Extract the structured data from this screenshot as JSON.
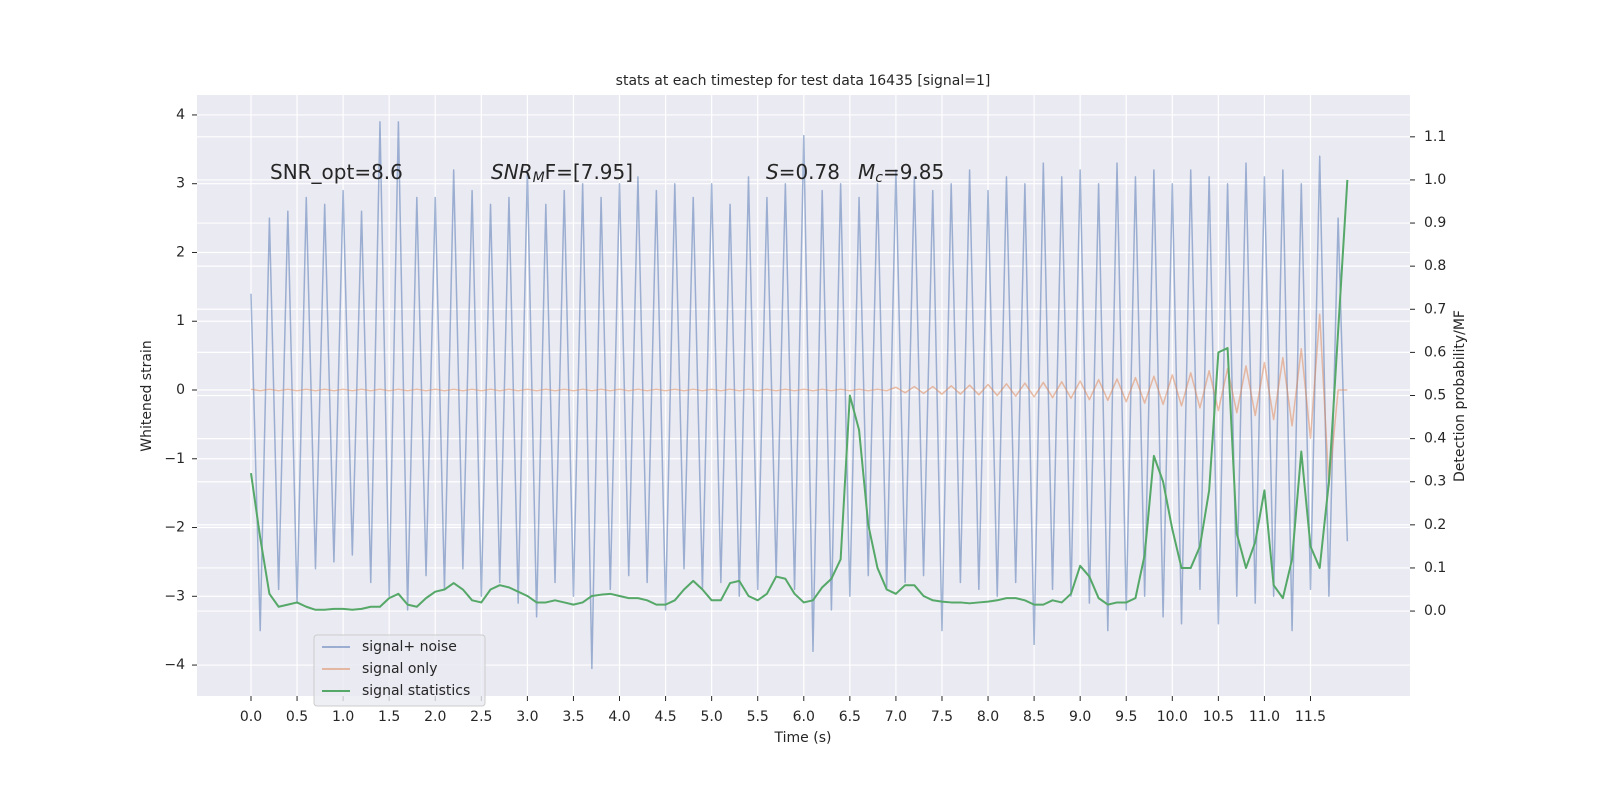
{
  "chart_data": {
    "type": "line",
    "title": "stats at each timestep for test data 16435 [signal=1]",
    "x_label": "Time (s)",
    "y_label": "Whitened strain",
    "y2_label": "Detection probability/MF",
    "annotations": [
      {
        "text": "SNR_opt=8.6"
      },
      {
        "italic": "SNR",
        "sub": "M",
        "text": "F=[7.95]"
      },
      {
        "italic": "S",
        "text": "=0.78"
      },
      {
        "italic": "M",
        "sub": "c",
        "text": "=9.85"
      }
    ],
    "grid": true,
    "legend": "lower left",
    "xlim": [
      -0.586,
      12.58
    ],
    "ylim": [
      -4.45,
      4.29
    ],
    "y2lim": [
      -0.197,
      1.197
    ],
    "xticks": [
      {
        "value": 0,
        "label": "0.0"
      },
      {
        "value": 0.5,
        "label": "0.5"
      },
      {
        "value": 1,
        "label": "1.0"
      },
      {
        "value": 1.5,
        "label": "1.5"
      },
      {
        "value": 2,
        "label": "2.0"
      },
      {
        "value": 2.5,
        "label": "2.5"
      },
      {
        "value": 3,
        "label": "3.0"
      },
      {
        "value": 3.5,
        "label": "3.5"
      },
      {
        "value": 4,
        "label": "4.0"
      },
      {
        "value": 4.5,
        "label": "4.5"
      },
      {
        "value": 5,
        "label": "5.0"
      },
      {
        "value": 5.5,
        "label": "5.5"
      },
      {
        "value": 6,
        "label": "6.0"
      },
      {
        "value": 6.5,
        "label": "6.5"
      },
      {
        "value": 7,
        "label": "7.0"
      },
      {
        "value": 7.5,
        "label": "7.5"
      },
      {
        "value": 8,
        "label": "8.0"
      },
      {
        "value": 8.5,
        "label": "8.5"
      },
      {
        "value": 9,
        "label": "9.0"
      },
      {
        "value": 9.5,
        "label": "9.5"
      },
      {
        "value": 10,
        "label": "10.0"
      },
      {
        "value": 10.5,
        "label": "10.5"
      },
      {
        "value": 11,
        "label": "11.0"
      },
      {
        "value": 11.5,
        "label": "11.5"
      }
    ],
    "yticks": [
      {
        "value": -4,
        "label": "−4"
      },
      {
        "value": -3,
        "label": "−3"
      },
      {
        "value": -2,
        "label": "−2"
      },
      {
        "value": -1,
        "label": "−1"
      },
      0,
      1,
      2,
      3,
      4
    ],
    "y2ticks": [
      {
        "value": 0,
        "label": "0.0"
      },
      {
        "value": 0.1,
        "label": "0.1"
      },
      {
        "value": 0.2,
        "label": "0.2"
      },
      {
        "value": 0.3,
        "label": "0.3"
      },
      {
        "value": 0.4,
        "label": "0.4"
      },
      {
        "value": 0.5,
        "label": "0.5"
      },
      {
        "value": 0.6,
        "label": "0.6"
      },
      {
        "value": 0.7,
        "label": "0.7"
      },
      {
        "value": 0.8,
        "label": "0.8"
      },
      {
        "value": 0.9,
        "label": "0.9"
      },
      {
        "value": 1.0,
        "label": "1.0"
      },
      {
        "value": 1.1,
        "label": "1.1"
      }
    ],
    "x": [
      0.0,
      0.1,
      0.2,
      0.3,
      0.4,
      0.5,
      0.6,
      0.7,
      0.8,
      0.9,
      1.0,
      1.1,
      1.2,
      1.3,
      1.4,
      1.5,
      1.6,
      1.7,
      1.8,
      1.9,
      2.0,
      2.1,
      2.2,
      2.3,
      2.4,
      2.5,
      2.6,
      2.7,
      2.8,
      2.9,
      3.0,
      3.1,
      3.2,
      3.3,
      3.4,
      3.5,
      3.6,
      3.7,
      3.8,
      3.9,
      4.0,
      4.1,
      4.2,
      4.3,
      4.4,
      4.5,
      4.6,
      4.7,
      4.8,
      4.9,
      5.0,
      5.1,
      5.2,
      5.3,
      5.4,
      5.5,
      5.6,
      5.7,
      5.8,
      5.9,
      6.0,
      6.1,
      6.2,
      6.3,
      6.4,
      6.5,
      6.6,
      6.7,
      6.8,
      6.9,
      7.0,
      7.1,
      7.2,
      7.3,
      7.4,
      7.5,
      7.6,
      7.7,
      7.8,
      7.9,
      8.0,
      8.1,
      8.2,
      8.3,
      8.4,
      8.5,
      8.6,
      8.7,
      8.8,
      8.9,
      9.0,
      9.1,
      9.2,
      9.3,
      9.4,
      9.5,
      9.6,
      9.7,
      9.8,
      9.9,
      10.0,
      10.1,
      10.2,
      10.3,
      10.4,
      10.5,
      10.6,
      10.7,
      10.8,
      10.9,
      11.0,
      11.1,
      11.2,
      11.3,
      11.4,
      11.5,
      11.6,
      11.7,
      11.8,
      11.9
    ],
    "series": [
      {
        "name": "signal+ noise",
        "color": "#4c72b0",
        "alpha": 0.5,
        "values": [
          1.4,
          -3.5,
          2.5,
          -2.9,
          2.6,
          -3.1,
          2.8,
          -2.6,
          2.7,
          -2.5,
          2.9,
          -2.4,
          2.6,
          -2.8,
          3.9,
          -3.0,
          3.9,
          -3.2,
          2.8,
          -2.7,
          2.8,
          -2.9,
          3.2,
          -2.6,
          2.9,
          -3.0,
          2.7,
          -2.8,
          2.8,
          -3.1,
          3.2,
          -3.3,
          2.7,
          -2.8,
          2.9,
          -3.0,
          3.0,
          -4.05,
          2.8,
          -2.9,
          3.0,
          -2.7,
          3.1,
          -2.8,
          2.9,
          -3.2,
          3.0,
          -2.6,
          2.8,
          -2.9,
          3.0,
          -2.8,
          2.7,
          -3.0,
          3.1,
          -2.9,
          2.8,
          -2.7,
          3.0,
          -2.9,
          3.7,
          -3.8,
          2.9,
          -3.2,
          3.0,
          -3.0,
          2.8,
          -2.7,
          3.0,
          -2.9,
          3.2,
          -2.8,
          3.1,
          -2.7,
          2.9,
          -3.5,
          3.0,
          -2.8,
          3.2,
          -2.9,
          2.9,
          -3.0,
          3.1,
          -2.8,
          3.0,
          -3.7,
          3.3,
          -2.9,
          3.1,
          -3.0,
          3.2,
          -3.1,
          3.0,
          -3.5,
          3.3,
          -3.2,
          3.1,
          -3.0,
          3.2,
          -3.3,
          3.0,
          -3.4,
          3.2,
          -2.9,
          3.1,
          -3.4,
          3.0,
          -3.0,
          3.3,
          -3.1,
          3.1,
          -3.0,
          3.2,
          -3.5,
          3.0,
          -2.9,
          3.4,
          -3.0,
          2.5,
          -2.2
        ]
      },
      {
        "name": "signal only",
        "color": "#dd8452",
        "alpha": 0.5,
        "values": [
          0.01,
          -0.01,
          0.01,
          -0.01,
          0.01,
          -0.01,
          0.01,
          -0.01,
          0.01,
          -0.01,
          0.01,
          -0.01,
          0.01,
          -0.01,
          0.01,
          -0.01,
          0.01,
          -0.01,
          0.01,
          -0.01,
          0.01,
          -0.01,
          0.01,
          -0.01,
          0.01,
          -0.01,
          0.01,
          -0.01,
          0.01,
          -0.01,
          0.01,
          -0.01,
          0.01,
          -0.01,
          0.01,
          -0.01,
          0.01,
          -0.01,
          0.01,
          -0.01,
          0.01,
          -0.01,
          0.01,
          -0.01,
          0.01,
          -0.01,
          0.01,
          -0.01,
          0.01,
          -0.01,
          0.01,
          -0.01,
          0.01,
          -0.01,
          0.01,
          -0.01,
          0.01,
          -0.01,
          0.01,
          -0.01,
          0.01,
          -0.01,
          0.01,
          -0.01,
          0.01,
          -0.01,
          0.01,
          -0.01,
          0.01,
          -0.01,
          0.04,
          -0.04,
          0.05,
          -0.05,
          0.05,
          -0.06,
          0.06,
          -0.06,
          0.07,
          -0.07,
          0.08,
          -0.08,
          0.09,
          -0.09,
          0.1,
          -0.1,
          0.11,
          -0.11,
          0.12,
          -0.12,
          0.13,
          -0.14,
          0.15,
          -0.15,
          0.16,
          -0.17,
          0.18,
          -0.19,
          0.2,
          -0.21,
          0.22,
          -0.23,
          0.25,
          -0.26,
          0.28,
          -0.3,
          0.31,
          -0.33,
          0.35,
          -0.37,
          0.4,
          -0.43,
          0.47,
          -0.52,
          0.6,
          -0.7,
          1.1,
          -1.4,
          0.0,
          0.0
        ]
      },
      {
        "name": "signal statistics",
        "color": "#55a868",
        "alpha": 1,
        "axis": "y2",
        "values": [
          0.32,
          0.17,
          0.04,
          0.01,
          0.015,
          0.02,
          0.01,
          0.003,
          0.003,
          0.005,
          0.005,
          0.003,
          0.005,
          0.01,
          0.01,
          0.03,
          0.04,
          0.015,
          0.01,
          0.03,
          0.045,
          0.05,
          0.065,
          0.05,
          0.025,
          0.02,
          0.05,
          0.06,
          0.055,
          0.045,
          0.035,
          0.02,
          0.02,
          0.025,
          0.02,
          0.015,
          0.02,
          0.035,
          0.038,
          0.04,
          0.035,
          0.03,
          0.03,
          0.025,
          0.015,
          0.015,
          0.025,
          0.05,
          0.07,
          0.05,
          0.025,
          0.025,
          0.065,
          0.07,
          0.035,
          0.025,
          0.04,
          0.08,
          0.075,
          0.04,
          0.02,
          0.025,
          0.055,
          0.075,
          0.12,
          0.5,
          0.42,
          0.2,
          0.1,
          0.05,
          0.04,
          0.06,
          0.06,
          0.035,
          0.025,
          0.022,
          0.02,
          0.02,
          0.018,
          0.02,
          0.022,
          0.025,
          0.03,
          0.03,
          0.025,
          0.015,
          0.015,
          0.025,
          0.02,
          0.04,
          0.105,
          0.08,
          0.03,
          0.015,
          0.02,
          0.02,
          0.03,
          0.13,
          0.36,
          0.3,
          0.19,
          0.1,
          0.1,
          0.15,
          0.28,
          0.6,
          0.61,
          0.18,
          0.1,
          0.16,
          0.28,
          0.06,
          0.03,
          0.12,
          0.37,
          0.15,
          0.1,
          0.3,
          0.65,
          1.0
        ]
      }
    ]
  }
}
